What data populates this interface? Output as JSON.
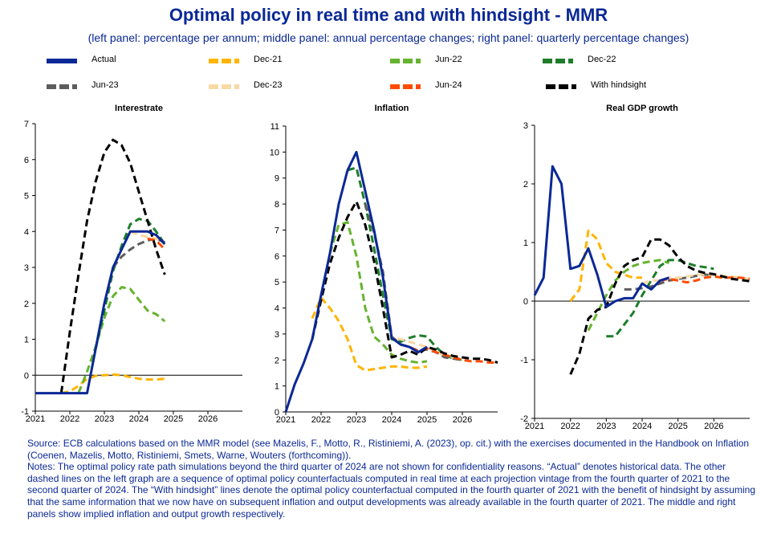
{
  "title": "Optimal policy in real time and with hindsight - MMR",
  "subtitle": "(left panel: percentage per annum; middle panel: annual percentage changes; right panel: quarterly percentage changes)",
  "legend": [
    {
      "label": "Actual",
      "color": "#0a2896",
      "dashed": false
    },
    {
      "label": "Dec-21",
      "color": "#ffb400",
      "dashed": true
    },
    {
      "label": "Jun-22",
      "color": "#65b32e",
      "dashed": true
    },
    {
      "label": "Dec-22",
      "color": "#1e7d2b",
      "dashed": true
    },
    {
      "label": "Jun-23",
      "color": "#5c5c5c",
      "dashed": true
    },
    {
      "label": "Dec-23",
      "color": "#f9d9a4",
      "dashed": true
    },
    {
      "label": "Jun-24",
      "color": "#ff4b00",
      "dashed": true
    },
    {
      "label": "With hindsight",
      "color": "#000000",
      "dashed": true
    }
  ],
  "chart_data": [
    {
      "type": "line",
      "title": "Interestrate",
      "xlim": [
        2021,
        2027
      ],
      "ylim": [
        -1,
        7
      ],
      "yticks": [
        -1,
        0,
        1,
        2,
        3,
        4,
        5,
        6,
        7
      ],
      "xticks": [
        2021,
        2022,
        2023,
        2024,
        2025,
        2026
      ],
      "series": [
        {
          "name": "Actual",
          "x": [
            2021,
            2021.25,
            2021.5,
            2021.75,
            2022,
            2022.25,
            2022.5,
            2022.75,
            2023,
            2023.25,
            2023.5,
            2023.75,
            2024,
            2024.25,
            2024.5,
            2024.75
          ],
          "y": [
            -0.5,
            -0.5,
            -0.5,
            -0.5,
            -0.5,
            -0.5,
            -0.5,
            0.75,
            2.0,
            3.0,
            3.5,
            4.0,
            4.0,
            4.0,
            3.9,
            3.65
          ]
        },
        {
          "name": "Dec-21",
          "x": [
            2021.75,
            2022,
            2022.25,
            2022.5,
            2022.75,
            2023,
            2023.25,
            2023.5,
            2023.75,
            2024,
            2024.25,
            2024.5,
            2024.75
          ],
          "y": [
            -0.5,
            -0.45,
            -0.3,
            -0.1,
            -0.02,
            0,
            0.02,
            0,
            -0.05,
            -0.1,
            -0.12,
            -0.12,
            -0.1
          ]
        },
        {
          "name": "Jun-22",
          "x": [
            2022.25,
            2022.5,
            2022.75,
            2023,
            2023.25,
            2023.5,
            2023.75,
            2024,
            2024.25,
            2024.5,
            2024.75
          ],
          "y": [
            -0.5,
            0.1,
            0.8,
            1.6,
            2.2,
            2.45,
            2.4,
            2.1,
            1.8,
            1.7,
            1.5
          ]
        },
        {
          "name": "Dec-22",
          "x": [
            2022.75,
            2023,
            2023.25,
            2023.5,
            2023.75,
            2024,
            2024.25,
            2024.5,
            2024.75
          ],
          "y": [
            0.75,
            1.8,
            2.9,
            3.6,
            4.2,
            4.35,
            4.3,
            4.0,
            3.65
          ]
        },
        {
          "name": "Jun-23",
          "x": [
            2023.25,
            2023.5,
            2023.75,
            2024,
            2024.25,
            2024.5,
            2024.75
          ],
          "y": [
            3.0,
            3.3,
            3.5,
            3.65,
            3.75,
            3.8,
            3.7
          ]
        },
        {
          "name": "Dec-23",
          "x": [
            2023.75,
            2024,
            2024.25,
            2024.5,
            2024.75
          ],
          "y": [
            4.0,
            3.9,
            3.85,
            3.8,
            3.65
          ]
        },
        {
          "name": "Jun-24",
          "x": [
            2024.25,
            2024.5,
            2024.75
          ],
          "y": [
            3.8,
            3.75,
            3.5
          ]
        },
        {
          "name": "With hindsight",
          "x": [
            2021.75,
            2022,
            2022.25,
            2022.5,
            2022.75,
            2023,
            2023.25,
            2023.5,
            2023.75,
            2024,
            2024.25,
            2024.5,
            2024.75
          ],
          "y": [
            -0.5,
            1.2,
            2.8,
            4.3,
            5.4,
            6.2,
            6.55,
            6.4,
            5.9,
            5.1,
            4.3,
            3.5,
            2.8
          ]
        }
      ]
    },
    {
      "type": "line",
      "title": "Inflation",
      "xlim": [
        2021,
        2027
      ],
      "ylim": [
        0,
        11
      ],
      "yticks": [
        0,
        1,
        2,
        3,
        4,
        5,
        6,
        7,
        8,
        9,
        10,
        11
      ],
      "xticks": [
        2021,
        2022,
        2023,
        2024,
        2025,
        2026
      ],
      "series": [
        {
          "name": "Actual",
          "x": [
            2021,
            2021.25,
            2021.5,
            2021.75,
            2022,
            2022.25,
            2022.5,
            2022.75,
            2023,
            2023.25,
            2023.5,
            2023.75,
            2024,
            2024.25,
            2024.5,
            2024.75,
            2025
          ],
          "y": [
            0,
            1.05,
            1.85,
            2.8,
            4.5,
            6.1,
            8.0,
            9.3,
            10.0,
            8.5,
            7.0,
            5.2,
            2.85,
            2.6,
            2.5,
            2.3,
            2.5
          ]
        },
        {
          "name": "Dec-21",
          "x": [
            2021.75,
            2022,
            2022.25,
            2022.5,
            2022.75,
            2023,
            2023.25,
            2023.5,
            2023.75,
            2024,
            2024.25,
            2024.5,
            2024.75,
            2025
          ],
          "y": [
            3.6,
            4.4,
            4.0,
            3.5,
            2.8,
            1.8,
            1.6,
            1.65,
            1.7,
            1.75,
            1.75,
            1.7,
            1.7,
            1.75
          ]
        },
        {
          "name": "Jun-22",
          "x": [
            2022.25,
            2022.5,
            2022.75,
            2023,
            2023.25,
            2023.5,
            2023.75,
            2024,
            2024.25,
            2024.5,
            2024.75,
            2025
          ],
          "y": [
            6.1,
            7.2,
            7.3,
            6.0,
            4.0,
            2.9,
            2.6,
            2.2,
            2.05,
            1.95,
            1.9,
            1.95
          ]
        },
        {
          "name": "Dec-22",
          "x": [
            2022.75,
            2023,
            2023.25,
            2023.5,
            2023.75,
            2024,
            2024.25,
            2024.5,
            2024.75,
            2025,
            2025.25,
            2025.5,
            2025.75,
            2026
          ],
          "y": [
            9.3,
            9.4,
            8.0,
            6.3,
            4.5,
            2.8,
            2.7,
            2.85,
            2.95,
            2.9,
            2.5,
            2.2,
            2.05,
            2.0
          ]
        },
        {
          "name": "Jun-23",
          "x": [
            2023.25,
            2023.5,
            2023.75,
            2024,
            2024.25,
            2024.5,
            2024.75,
            2025,
            2025.25,
            2025.5,
            2025.75,
            2026
          ],
          "y": [
            8.0,
            6.9,
            5.4,
            2.9,
            2.6,
            2.5,
            2.35,
            2.4,
            2.3,
            2.1,
            2.05,
            2.0
          ]
        },
        {
          "name": "Dec-23",
          "x": [
            2023.75,
            2024,
            2024.25,
            2024.5,
            2024.75,
            2025,
            2025.25,
            2025.5,
            2025.75,
            2026
          ],
          "y": [
            5.2,
            2.85,
            2.8,
            2.7,
            2.6,
            2.5,
            2.3,
            2.2,
            2.1,
            2.0
          ]
        },
        {
          "name": "Jun-24",
          "x": [
            2024.25,
            2024.5,
            2024.75,
            2025,
            2025.25,
            2025.5,
            2025.75,
            2026,
            2026.25,
            2026.5,
            2026.75,
            2027
          ],
          "y": [
            2.6,
            2.5,
            2.35,
            2.45,
            2.3,
            2.2,
            2.1,
            2.0,
            1.95,
            1.95,
            1.9,
            1.9
          ]
        },
        {
          "name": "With hindsight",
          "x": [
            2021.75,
            2022,
            2022.25,
            2022.5,
            2022.75,
            2023,
            2023.25,
            2023.5,
            2023.75,
            2024,
            2024.25,
            2024.5,
            2024.75,
            2025,
            2025.25,
            2025.5,
            2025.75,
            2026,
            2026.25,
            2026.5,
            2026.75,
            2027
          ],
          "y": [
            2.8,
            4.3,
            5.7,
            6.7,
            7.5,
            8.1,
            7.2,
            5.8,
            4.0,
            2.1,
            2.2,
            2.35,
            2.2,
            2.5,
            2.4,
            2.25,
            2.15,
            2.1,
            2.05,
            2.05,
            2.0,
            1.9
          ]
        }
      ]
    },
    {
      "type": "line",
      "title": "Real GDP growth",
      "xlim": [
        2021,
        2027
      ],
      "ylim": [
        -2,
        3
      ],
      "yticks": [
        -2,
        -1,
        0,
        1,
        2,
        3
      ],
      "xticks": [
        2021,
        2022,
        2023,
        2024,
        2025,
        2026
      ],
      "series": [
        {
          "name": "Actual",
          "x": [
            2021,
            2021.25,
            2021.5,
            2021.75,
            2022,
            2022.25,
            2022.5,
            2022.75,
            2023,
            2023.25,
            2023.5,
            2023.75,
            2024,
            2024.25,
            2024.5,
            2024.75
          ],
          "y": [
            0.1,
            0.4,
            2.3,
            2.0,
            0.55,
            0.6,
            0.9,
            0.45,
            -0.1,
            0.0,
            0.05,
            0.05,
            0.3,
            0.2,
            0.35,
            0.4
          ]
        },
        {
          "name": "Dec-21",
          "x": [
            2022,
            2022.25,
            2022.5,
            2022.75,
            2023,
            2023.25,
            2023.5,
            2023.75,
            2024
          ],
          "y": [
            0.0,
            0.2,
            1.2,
            1.05,
            0.65,
            0.5,
            0.45,
            0.4,
            0.4
          ]
        },
        {
          "name": "Jun-22",
          "x": [
            2022.5,
            2022.75,
            2023,
            2023.25,
            2023.5,
            2023.75,
            2024,
            2024.25,
            2024.5,
            2024.75
          ],
          "y": [
            -0.5,
            -0.2,
            0.1,
            0.35,
            0.5,
            0.6,
            0.65,
            0.68,
            0.7,
            0.65
          ]
        },
        {
          "name": "Dec-22",
          "x": [
            2023,
            2023.25,
            2023.5,
            2023.75,
            2024,
            2024.25,
            2024.5,
            2024.75,
            2025,
            2025.25,
            2025.5,
            2025.75,
            2026
          ],
          "y": [
            -0.6,
            -0.6,
            -0.4,
            -0.2,
            0.1,
            0.35,
            0.6,
            0.7,
            0.7,
            0.65,
            0.6,
            0.58,
            0.55
          ]
        },
        {
          "name": "Jun-23",
          "x": [
            2023.5,
            2023.75,
            2024,
            2024.25,
            2024.5,
            2024.75,
            2025,
            2025.25,
            2025.5,
            2025.75,
            2026
          ],
          "y": [
            0.2,
            0.2,
            0.22,
            0.25,
            0.3,
            0.35,
            0.38,
            0.4,
            0.43,
            0.45,
            0.45
          ]
        },
        {
          "name": "Dec-23",
          "x": [
            2024,
            2024.25,
            2024.5,
            2024.75,
            2025,
            2025.25,
            2025.5,
            2025.75,
            2026,
            2026.25,
            2026.5,
            2026.75,
            2027
          ],
          "y": [
            0.3,
            0.35,
            0.35,
            0.4,
            0.4,
            0.42,
            0.45,
            0.45,
            0.45,
            0.43,
            0.42,
            0.4,
            0.38
          ]
        },
        {
          "name": "Jun-24",
          "x": [
            2024.5,
            2024.75,
            2025,
            2025.25,
            2025.5,
            2025.75,
            2026,
            2026.25,
            2026.5,
            2026.75,
            2027
          ],
          "y": [
            0.35,
            0.38,
            0.35,
            0.32,
            0.35,
            0.4,
            0.42,
            0.4,
            0.4,
            0.4,
            0.38
          ]
        },
        {
          "name": "With hindsight",
          "x": [
            2022,
            2022.25,
            2022.5,
            2022.75,
            2023,
            2023.25,
            2023.5,
            2023.75,
            2024,
            2024.25,
            2024.5,
            2024.75,
            2025,
            2025.25,
            2025.5,
            2025.75,
            2026,
            2026.25,
            2026.5,
            2026.75,
            2027
          ],
          "y": [
            -1.25,
            -0.9,
            -0.3,
            -0.15,
            -0.1,
            0.3,
            0.6,
            0.7,
            0.75,
            1.05,
            1.05,
            0.95,
            0.75,
            0.6,
            0.52,
            0.48,
            0.46,
            0.42,
            0.38,
            0.36,
            0.34
          ]
        }
      ]
    }
  ],
  "footer": {
    "source": "Source: ECB calculations based on the MMR model (see Mazelis, F., Motto, R., Ristiniemi, A. (2023), op. cit.) with the exercises documented in the Handbook on Inflation (Coenen, Mazelis, Motto, Ristiniemi, Smets, Warne, Wouters (forthcoming)).",
    "notes": "Notes: The optimal policy rate path simulations beyond the third quarter of 2024 are not shown for confidentiality reasons. “Actual” denotes historical data. The other dashed lines on the left graph are a sequence of optimal policy counterfactuals computed in real time at each projection vintage from the fourth quarter of 2021 to the second quarter of 2024. The “With hindsight” lines denote the optimal policy counterfactual computed in the fourth quarter of 2021 with the benefit of hindsight by assuming that the same information that we now have on subsequent inflation and output developments was already available in the fourth quarter of 2021. The middle and right panels show implied inflation and output growth respectively."
  }
}
